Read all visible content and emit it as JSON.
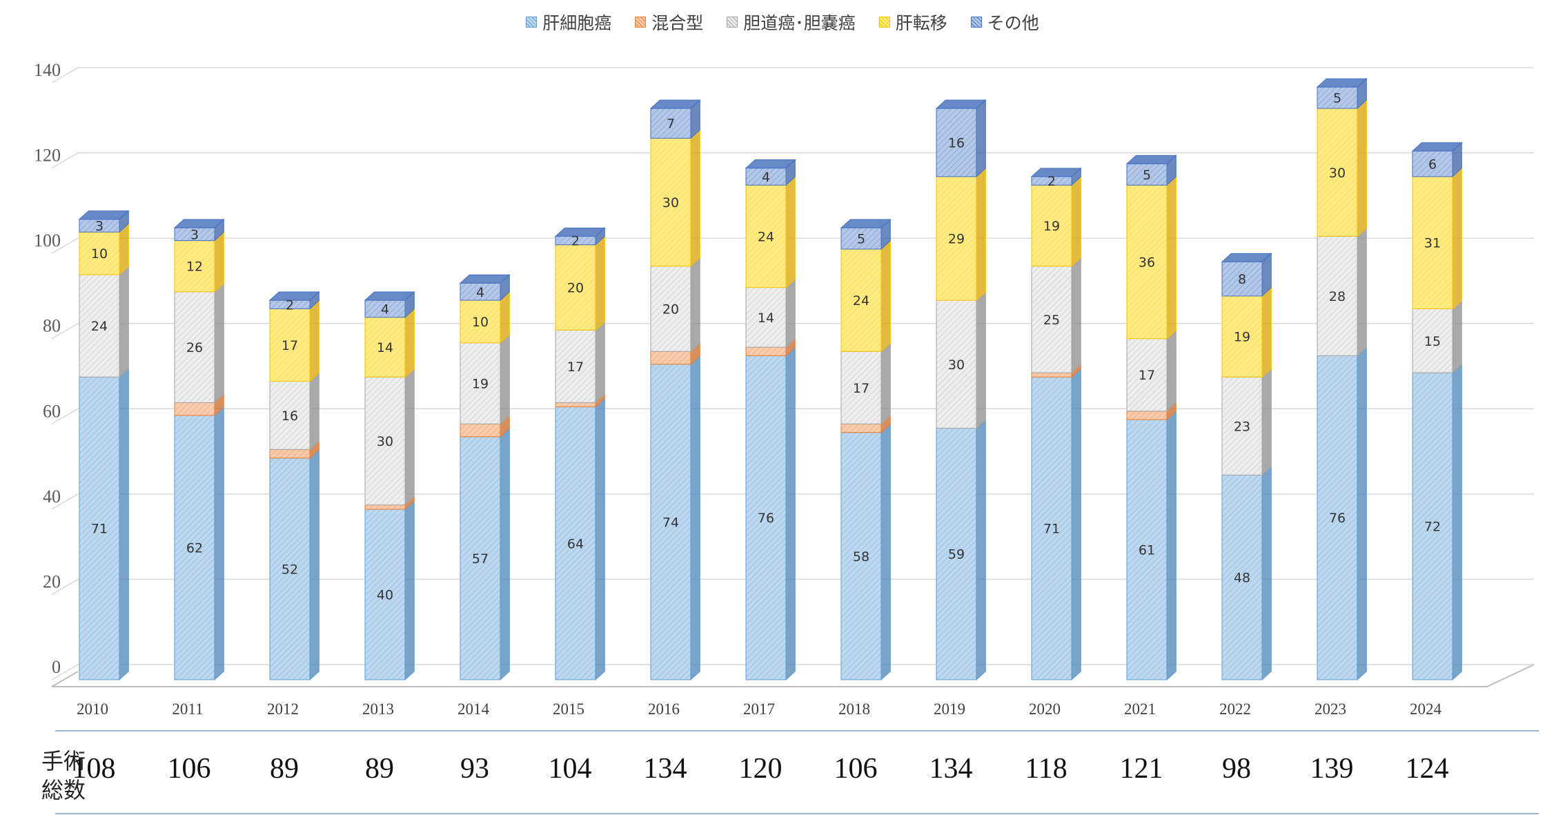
{
  "chart_data": {
    "type": "bar",
    "stacked": true,
    "categories": [
      "2010",
      "2011",
      "2012",
      "2013",
      "2014",
      "2015",
      "2016",
      "2017",
      "2018",
      "2019",
      "2020",
      "2021",
      "2022",
      "2023",
      "2024"
    ],
    "ylim": [
      0,
      140
    ],
    "yticks": [
      0,
      20,
      40,
      60,
      80,
      100,
      120,
      140
    ],
    "grid": true,
    "legend": "top-center",
    "series": [
      {
        "name": "肝細胞癌",
        "color": "#bdd7ee",
        "stroke": "#5b9bd5",
        "values": [
          71,
          62,
          52,
          40,
          57,
          64,
          74,
          76,
          58,
          59,
          71,
          61,
          48,
          76,
          72
        ]
      },
      {
        "name": "混合型",
        "color": "#f8cbad",
        "stroke": "#ed7d31",
        "values": [
          0,
          3,
          2,
          1,
          3,
          1,
          3,
          2,
          2,
          0,
          1,
          2,
          0,
          0,
          0
        ]
      },
      {
        "name": "胆道癌･胆嚢癌",
        "color": "#ededed",
        "stroke": "#a5a5a5",
        "values": [
          24,
          26,
          16,
          30,
          19,
          17,
          20,
          14,
          17,
          30,
          25,
          17,
          23,
          28,
          15
        ]
      },
      {
        "name": "肝転移",
        "color": "#ffeb84",
        "stroke": "#ffc000",
        "values": [
          10,
          12,
          17,
          14,
          10,
          20,
          30,
          24,
          24,
          29,
          19,
          36,
          19,
          30,
          31
        ]
      },
      {
        "name": "その他",
        "color": "#b4c7e7",
        "stroke": "#4472c4",
        "values": [
          3,
          3,
          2,
          4,
          4,
          2,
          7,
          4,
          5,
          16,
          2,
          5,
          8,
          5,
          6
        ]
      }
    ],
    "data_labels": [
      [
        "71",
        "62",
        "52",
        "40",
        "57",
        "64",
        "74",
        "76",
        "58",
        "59",
        "71",
        "61",
        "48",
        "76",
        "72"
      ],
      [
        "",
        "",
        "",
        "",
        "",
        "",
        "",
        "",
        "",
        "",
        "",
        "",
        "",
        "",
        ""
      ],
      [
        "24",
        "26",
        "16",
        "30",
        "19",
        "17",
        "20",
        "14",
        "17",
        "30",
        "25",
        "17",
        "23",
        "28",
        "15"
      ],
      [
        "10",
        "12",
        "17",
        "14",
        "10",
        "20",
        "30",
        "24",
        "24",
        "29",
        "19",
        "36",
        "19",
        "30",
        "31"
      ],
      [
        "3",
        "3",
        "2",
        "4",
        "4",
        "2",
        "7",
        "4",
        "5",
        "16",
        "2",
        "5",
        "8",
        "5",
        "6"
      ]
    ]
  },
  "totals": {
    "label_line1": "手術",
    "label_line2": "総数",
    "values": [
      "108",
      "106",
      "89",
      "89",
      "93",
      "104",
      "134",
      "120",
      "106",
      "134",
      "118",
      "121",
      "98",
      "139",
      "124"
    ]
  }
}
